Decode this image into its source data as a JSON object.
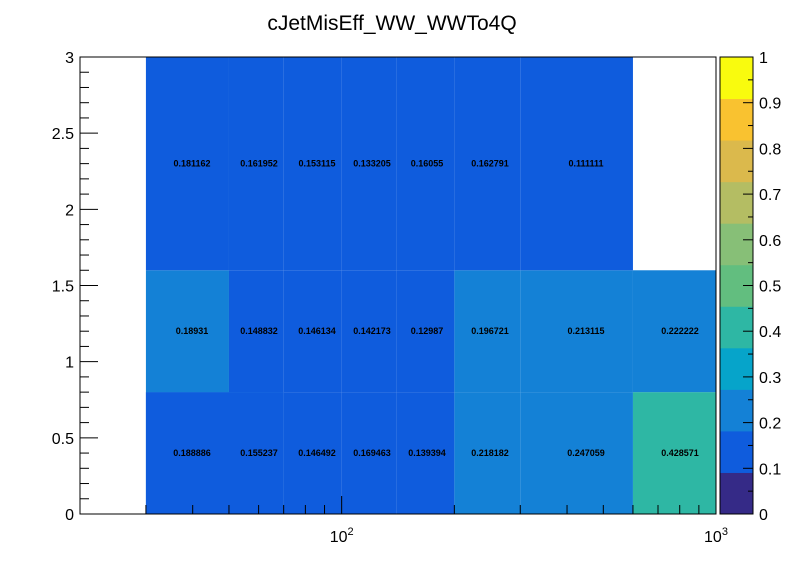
{
  "chart_data": {
    "type": "heatmap",
    "title": "cJetMisEff_WW_WWTo4Q",
    "xlabel": "",
    "ylabel": "",
    "x_scale": "log",
    "xlim": [
      20,
      1000
    ],
    "ylim": [
      0,
      3
    ],
    "x_tick_labels": [
      "10^2",
      "10^3"
    ],
    "y_tick_labels": [
      "0",
      "0.5",
      "1",
      "1.5",
      "2",
      "2.5",
      "3"
    ],
    "z_range": [
      0,
      1
    ],
    "colorbar_tick_labels": [
      "0",
      "0.1",
      "0.2",
      "0.3",
      "0.4",
      "0.5",
      "0.6",
      "0.7",
      "0.8",
      "0.9",
      "1"
    ],
    "colorbar_colors": [
      "#352a87",
      "#0f5cdd",
      "#1481d6",
      "#06a4ca",
      "#2eb7a4",
      "#62be7f",
      "#87bf77",
      "#b4bd63",
      "#dbb94c",
      "#f9c230",
      "#f9fb0e"
    ],
    "rows": [
      {
        "y_range": [
          0,
          0.8
        ],
        "cells": [
          {
            "x_range": [
              30,
              70
            ],
            "value": 0.188886
          },
          {
            "x_range": [
              30,
              70
            ],
            "value": 0.155237
          },
          {
            "x_range": [
              70,
              100
            ],
            "value": 0.146492
          },
          {
            "x_range": [
              100,
              140
            ],
            "value": 0.169463
          },
          {
            "x_range": [
              140,
              200
            ],
            "value": 0.139394
          },
          {
            "x_range": [
              200,
              300
            ],
            "value": 0.218182
          },
          {
            "x_range": [
              300,
              600
            ],
            "value": 0.247059
          },
          {
            "x_range": [
              600,
              1000
            ],
            "value": 0.428571
          }
        ]
      },
      {
        "y_range": [
          0.8,
          1.6
        ],
        "cells": [
          {
            "x_range": [
              30,
              50
            ],
            "value": 0.18931
          },
          {
            "x_range": [
              50,
              70
            ],
            "value": 0.148832
          },
          {
            "x_range": [
              70,
              100
            ],
            "value": 0.146134
          },
          {
            "x_range": [
              100,
              140
            ],
            "value": 0.142173
          },
          {
            "x_range": [
              140,
              200
            ],
            "value": 0.12987
          },
          {
            "x_range": [
              200,
              300
            ],
            "value": 0.196721
          },
          {
            "x_range": [
              300,
              600
            ],
            "value": 0.213115
          },
          {
            "x_range": [
              600,
              1000
            ],
            "value": 0.222222
          }
        ]
      },
      {
        "y_range": [
          1.6,
          3
        ],
        "cells": [
          {
            "x_range": [
              30,
              50
            ],
            "value": 0.181162
          },
          {
            "x_range": [
              50,
              70
            ],
            "value": 0.161952
          },
          {
            "x_range": [
              70,
              100
            ],
            "value": 0.153115
          },
          {
            "x_range": [
              100,
              140
            ],
            "value": 0.133205
          },
          {
            "x_range": [
              140,
              200
            ],
            "value": 0.16055
          },
          {
            "x_range": [
              200,
              300
            ],
            "value": 0.162791
          },
          {
            "x_range": [
              300,
              600
            ],
            "value": 0.111111
          }
        ]
      }
    ]
  }
}
